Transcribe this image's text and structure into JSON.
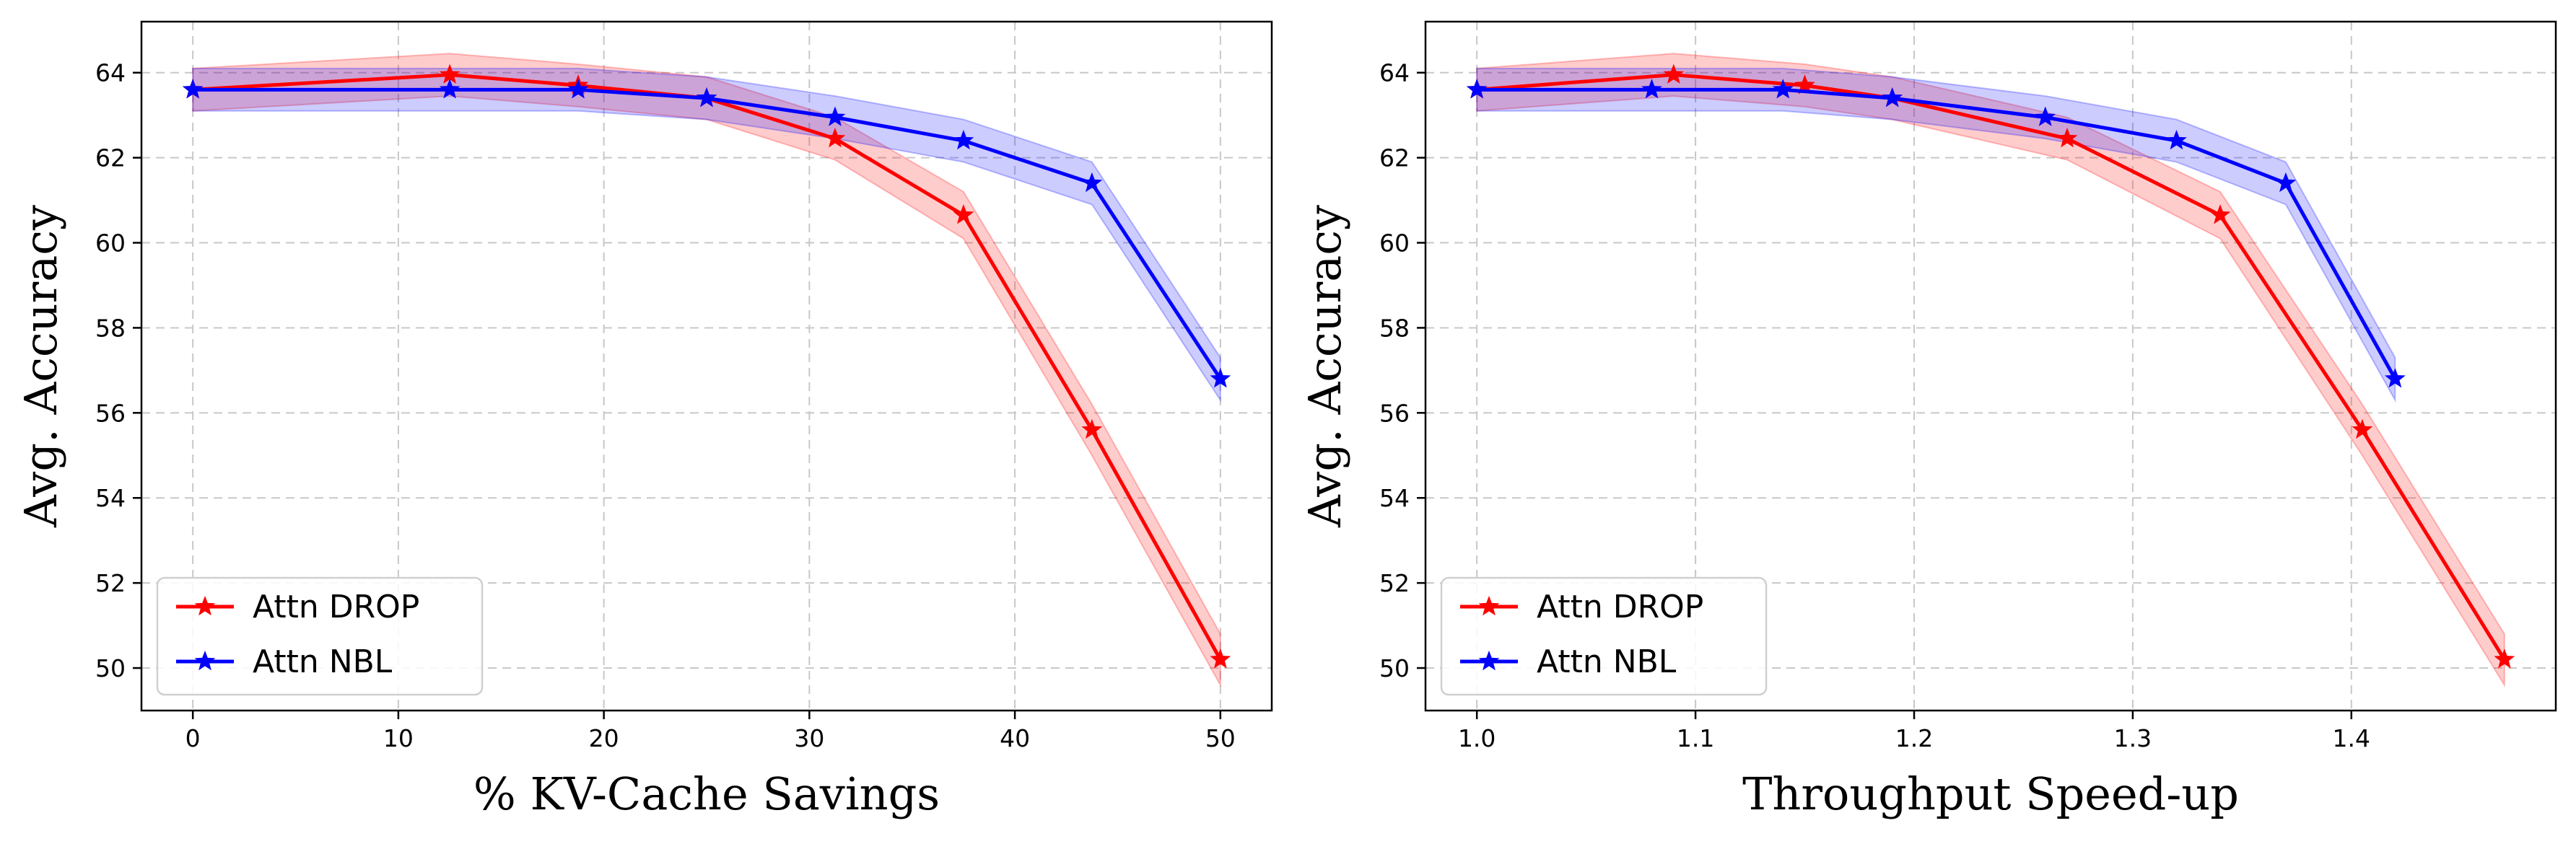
{
  "chart_data": [
    {
      "type": "line",
      "xlabel": "% KV-Cache Savings",
      "ylabel": "Avg. Accuracy",
      "xlim": [
        -2.5,
        52.5
      ],
      "ylim": [
        49.0,
        65.2
      ],
      "xticks": [
        0,
        10,
        20,
        30,
        40,
        50
      ],
      "xtick_labels": [
        "0",
        "10",
        "20",
        "30",
        "40",
        "50"
      ],
      "yticks": [
        50,
        52,
        54,
        56,
        58,
        60,
        62,
        64
      ],
      "ytick_labels": [
        "50",
        "52",
        "54",
        "56",
        "58",
        "60",
        "62",
        "64"
      ],
      "grid": true,
      "legend_position": "lower-left",
      "series": [
        {
          "name": "Attn DROP",
          "color": "#ff0000",
          "band_color": "#ff0000",
          "marker": "star",
          "x": [
            0,
            12.5,
            18.75,
            25,
            31.25,
            37.5,
            43.75,
            50
          ],
          "y": [
            63.6,
            63.95,
            63.7,
            63.4,
            62.45,
            60.65,
            55.6,
            50.2
          ],
          "lower": [
            63.1,
            63.45,
            63.2,
            62.9,
            61.95,
            60.1,
            55.0,
            49.6
          ],
          "upper": [
            64.1,
            64.45,
            64.2,
            63.9,
            62.95,
            61.2,
            56.2,
            50.8
          ]
        },
        {
          "name": "Attn NBL",
          "color": "#0000ff",
          "band_color": "#0000ff",
          "marker": "star",
          "x": [
            0,
            12.5,
            18.75,
            25,
            31.25,
            37.5,
            43.75,
            50
          ],
          "y": [
            63.6,
            63.6,
            63.6,
            63.4,
            62.95,
            62.4,
            61.4,
            56.8
          ],
          "lower": [
            63.1,
            63.1,
            63.1,
            62.9,
            62.45,
            61.9,
            60.9,
            56.3
          ],
          "upper": [
            64.1,
            64.1,
            64.1,
            63.9,
            63.45,
            62.9,
            61.9,
            57.3
          ]
        }
      ]
    },
    {
      "type": "line",
      "xlabel": "Throughput Speed-up",
      "ylabel": "Avg. Accuracy",
      "xlim": [
        0.9765,
        1.4935
      ],
      "ylim": [
        49.0,
        65.2
      ],
      "xticks": [
        1.0,
        1.1,
        1.2,
        1.3,
        1.4
      ],
      "xtick_labels": [
        "1.0",
        "1.1",
        "1.2",
        "1.3",
        "1.4"
      ],
      "yticks": [
        50,
        52,
        54,
        56,
        58,
        60,
        62,
        64
      ],
      "ytick_labels": [
        "50",
        "52",
        "54",
        "56",
        "58",
        "60",
        "62",
        "64"
      ],
      "grid": true,
      "legend_position": "lower-left",
      "series": [
        {
          "name": "Attn DROP",
          "color": "#ff0000",
          "band_color": "#ff0000",
          "marker": "star",
          "x": [
            1.0,
            1.09,
            1.15,
            1.19,
            1.27,
            1.34,
            1.405,
            1.47
          ],
          "y": [
            63.6,
            63.95,
            63.7,
            63.4,
            62.45,
            60.65,
            55.6,
            50.2
          ],
          "lower": [
            63.1,
            63.45,
            63.2,
            62.9,
            61.95,
            60.1,
            55.0,
            49.6
          ],
          "upper": [
            64.1,
            64.45,
            64.2,
            63.9,
            62.95,
            61.2,
            56.2,
            50.8
          ]
        },
        {
          "name": "Attn NBL",
          "color": "#0000ff",
          "band_color": "#0000ff",
          "marker": "star",
          "x": [
            1.0,
            1.08,
            1.14,
            1.19,
            1.26,
            1.32,
            1.37,
            1.42
          ],
          "y": [
            63.6,
            63.6,
            63.6,
            63.4,
            62.95,
            62.4,
            61.4,
            56.8
          ],
          "lower": [
            63.1,
            63.1,
            63.1,
            62.9,
            62.45,
            61.9,
            60.9,
            56.3
          ],
          "upper": [
            64.1,
            64.1,
            64.1,
            63.9,
            63.45,
            62.9,
            61.9,
            57.3
          ]
        }
      ]
    }
  ]
}
